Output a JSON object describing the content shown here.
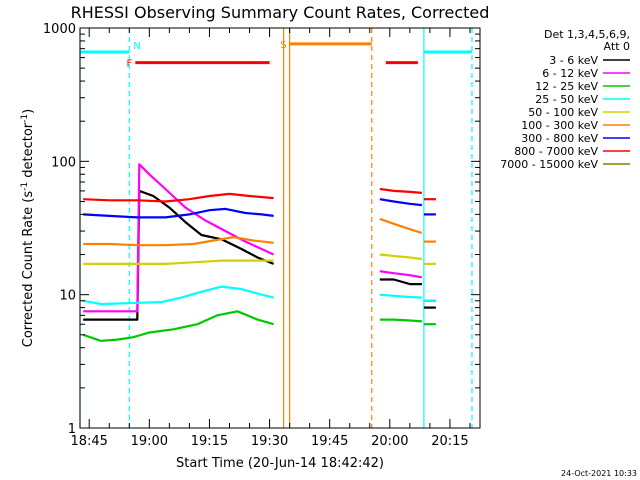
{
  "chart_data": {
    "type": "line",
    "title": "RHESSI Observing Summary Count Rates, Corrected",
    "xlabel": "Start Time (20-Jun-14 18:42:42)",
    "ylabel": "Corrected Count Rate (s",
    "ylabel_sup1": "-1",
    "ylabel_mid": " detector",
    "ylabel_sup2": "-1",
    "ylabel_end": ")",
    "y_scale": "log",
    "ylim": [
      1,
      1000
    ],
    "yticks": [
      {
        "value": 1,
        "label": "1"
      },
      {
        "value": 10,
        "label": "10"
      },
      {
        "value": 100,
        "label": "100"
      },
      {
        "value": 1000,
        "label": "1000"
      }
    ],
    "xlim": [
      "18:42:42",
      "20:22:30"
    ],
    "xticks": [
      "18:45",
      "19:00",
      "19:15",
      "19:30",
      "19:45",
      "20:00",
      "20:15"
    ],
    "legend": {
      "placement": "right",
      "header1": "Det 1,3,4,5,6,9,",
      "header2": "Att 0"
    },
    "series": [
      {
        "name": "3 - 6 keV",
        "color": "#000000",
        "segments": [
          {
            "x": [
              "18:43:30",
              "18:57:00",
              "18:57:30",
              "19:01",
              "19:05",
              "19:09",
              "19:13",
              "19:18",
              "19:23",
              "19:27",
              "19:31"
            ],
            "y": [
              6.5,
              6.5,
              60,
              55,
              45,
              35,
              28,
              26,
              22,
              19,
              17
            ]
          },
          {
            "x": [
              "19:57:30",
              "20:01",
              "20:05",
              "20:08"
            ],
            "y": [
              13,
              13,
              12,
              12
            ]
          },
          {
            "x": [
              "20:08:30",
              "20:11:30"
            ],
            "y": [
              8,
              8
            ]
          }
        ]
      },
      {
        "name": "6 - 12 keV",
        "color": "#ff00ff",
        "segments": [
          {
            "x": [
              "18:43:30",
              "18:57:00",
              "18:57:30",
              "19:00",
              "19:04",
              "19:09",
              "19:14",
              "19:19",
              "19:24",
              "19:28",
              "19:31"
            ],
            "y": [
              7.5,
              7.5,
              95,
              80,
              62,
              45,
              36,
              30,
              25,
              22,
              20
            ]
          },
          {
            "x": [
              "19:57:30",
              "20:01",
              "20:05",
              "20:08"
            ],
            "y": [
              15,
              14.5,
              14,
              13.5
            ]
          },
          {
            "x": [
              "20:08:30",
              "20:11:30"
            ],
            "y": [
              9,
              9
            ]
          }
        ]
      },
      {
        "name": "12 - 25 keV",
        "color": "#00c800",
        "segments": [
          {
            "x": [
              "18:43:30",
              "18:48",
              "18:52",
              "18:56",
              "19:00",
              "19:06",
              "19:12",
              "19:17",
              "19:22",
              "19:27",
              "19:31"
            ],
            "y": [
              5,
              4.5,
              4.6,
              4.8,
              5.2,
              5.5,
              6,
              7,
              7.5,
              6.5,
              6
            ]
          },
          {
            "x": [
              "19:57:30",
              "20:01",
              "20:05",
              "20:08"
            ],
            "y": [
              6.5,
              6.5,
              6.4,
              6.3
            ]
          },
          {
            "x": [
              "20:08:30",
              "20:11:30"
            ],
            "y": [
              6,
              6
            ]
          }
        ]
      },
      {
        "name": "25 - 50 keV",
        "color": "#00ffff",
        "segments": [
          {
            "x": [
              "18:43:30",
              "18:48",
              "18:53",
              "18:58",
              "19:03",
              "19:08",
              "19:13",
              "19:18",
              "19:23",
              "19:28",
              "19:31"
            ],
            "y": [
              9,
              8.5,
              8.6,
              8.7,
              8.8,
              9.5,
              10.5,
              11.5,
              11,
              10,
              9.5
            ]
          },
          {
            "x": [
              "19:57:30",
              "20:01",
              "20:05",
              "20:08"
            ],
            "y": [
              10,
              9.8,
              9.6,
              9.5
            ]
          },
          {
            "x": [
              "20:08:30",
              "20:11:30"
            ],
            "y": [
              9,
              9
            ]
          }
        ]
      },
      {
        "name": "50 - 100 keV",
        "color": "#d2d200",
        "segments": [
          {
            "x": [
              "18:43:30",
              "18:50",
              "18:57",
              "19:04",
              "19:11",
              "19:18",
              "19:24",
              "19:31"
            ],
            "y": [
              17,
              17,
              17,
              17,
              17.5,
              18,
              18,
              18
            ]
          },
          {
            "x": [
              "19:57:30",
              "20:01",
              "20:05",
              "20:08"
            ],
            "y": [
              20,
              19.5,
              19,
              18.5
            ]
          },
          {
            "x": [
              "20:08:30",
              "20:11:30"
            ],
            "y": [
              17,
              17
            ]
          }
        ]
      },
      {
        "name": "100 - 300 keV",
        "color": "#ff8000",
        "segments": [
          {
            "x": [
              "18:43:30",
              "18:50",
              "18:57",
              "19:04",
              "19:11",
              "19:16",
              "19:21",
              "19:26",
              "19:31"
            ],
            "y": [
              24,
              24,
              23.5,
              23.5,
              24,
              25.5,
              27,
              25.5,
              24.5
            ]
          },
          {
            "x": [
              "19:57:30",
              "20:01",
              "20:05",
              "20:08"
            ],
            "y": [
              37,
              34,
              31,
              29
            ]
          },
          {
            "x": [
              "20:08:30",
              "20:11:30"
            ],
            "y": [
              25,
              25
            ]
          }
        ]
      },
      {
        "name": "300 - 800 keV",
        "color": "#0000ff",
        "segments": [
          {
            "x": [
              "18:43:30",
              "18:50",
              "18:57",
              "19:04",
              "19:10",
              "19:15",
              "19:19",
              "19:24",
              "19:28",
              "19:31"
            ],
            "y": [
              40,
              39,
              38,
              38,
              40,
              43,
              44,
              41,
              40,
              39
            ]
          },
          {
            "x": [
              "19:57:30",
              "20:01",
              "20:05",
              "20:08"
            ],
            "y": [
              52,
              50,
              48,
              47
            ]
          },
          {
            "x": [
              "20:08:30",
              "20:11:30"
            ],
            "y": [
              40,
              40
            ]
          }
        ]
      },
      {
        "name": "800 - 7000 keV",
        "color": "#ff0000",
        "segments": [
          {
            "x": [
              "18:43:30",
              "18:50",
              "18:57",
              "19:04",
              "19:10",
              "19:15",
              "19:20",
              "19:25",
              "19:31"
            ],
            "y": [
              52,
              51,
              51,
              50,
              52,
              55,
              57,
              55,
              53
            ]
          },
          {
            "x": [
              "19:57:30",
              "20:01",
              "20:05",
              "20:08"
            ],
            "y": [
              62,
              60,
              59,
              58
            ]
          },
          {
            "x": [
              "20:08:30",
              "20:11:30"
            ],
            "y": [
              52,
              52
            ]
          }
        ]
      },
      {
        "name": "7000 - 15000 keV",
        "color": "#808000",
        "segments": []
      }
    ],
    "flag_bars": [
      {
        "label": "N",
        "color": "#00ffff",
        "x": [
          "18:42:42",
          "18:55:00"
        ],
        "y": 660
      },
      {
        "label": "",
        "color": "#00ffff",
        "x": [
          "20:08:30",
          "20:20:30"
        ],
        "y": 660
      },
      {
        "label": "F",
        "color": "#ff0000",
        "x": [
          "18:56:30",
          "19:30:00"
        ],
        "y": 550
      },
      {
        "label": "S",
        "color": "#ff8000",
        "x": [
          "19:35:00",
          "19:55:30"
        ],
        "y": 760
      },
      {
        "label": "",
        "color": "#ff0000",
        "x": [
          "19:59:00",
          "20:07:00"
        ],
        "y": 550
      }
    ],
    "markers": [
      {
        "color": "#00ffff",
        "style": "solid",
        "x": "18:42:42"
      },
      {
        "color": "#00ffff",
        "style": "dashed",
        "x": "18:55:00"
      },
      {
        "color": "#ff8000",
        "style": "solid",
        "x": "19:33:30"
      },
      {
        "color": "#ff8000",
        "style": "solid",
        "x": "19:35:00"
      },
      {
        "color": "#ff8000",
        "style": "dashed",
        "x": "19:55:30"
      },
      {
        "color": "#00ffff",
        "style": "solid",
        "x": "20:08:30"
      },
      {
        "color": "#00ffff",
        "style": "dashed",
        "x": "20:20:30"
      }
    ]
  },
  "footer": {
    "date": "24-Oct-2021 10:33"
  }
}
